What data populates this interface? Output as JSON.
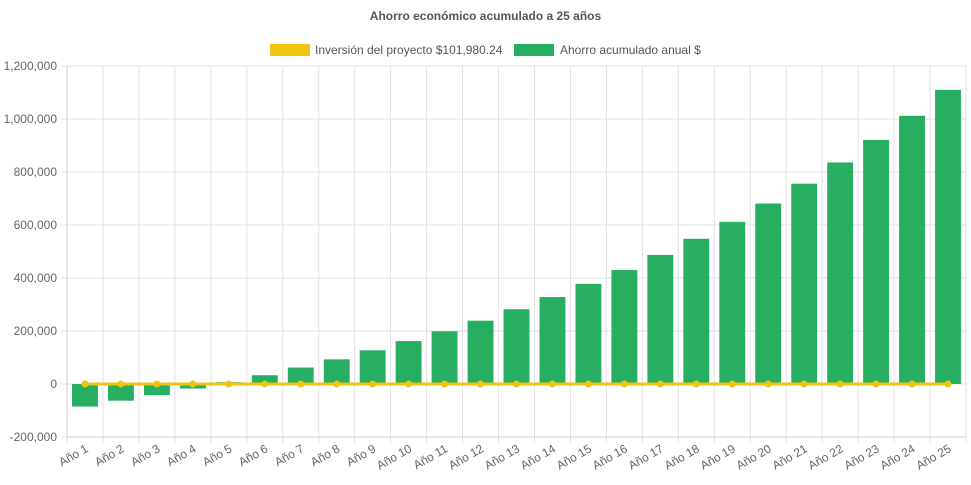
{
  "chart_data": {
    "type": "bar",
    "title": "Ahorro económico acumulado a 25 años",
    "legend_position": "top-center",
    "grid": true,
    "ylim": [
      -200000,
      1200000
    ],
    "ytick_step": 200000,
    "ytick_labels": [
      "-200,000",
      "0",
      "200,000",
      "400,000",
      "600,000",
      "800,000",
      "1,000,000",
      "1,200,000"
    ],
    "categories": [
      "Año 1",
      "Año 2",
      "Año 3",
      "Año 4",
      "Año 5",
      "Año 6",
      "Año 7",
      "Año 8",
      "Año 9",
      "Año 10",
      "Año 11",
      "Año 12",
      "Año 13",
      "Año 14",
      "Año 15",
      "Año 16",
      "Año 17",
      "Año 18",
      "Año 19",
      "Año 20",
      "Año 21",
      "Año 22",
      "Año 23",
      "Año 24",
      "Año 25"
    ],
    "series": [
      {
        "name": "Inversión del proyecto $101,980.24",
        "type": "line",
        "color": "#f1c40f",
        "values": [
          0,
          0,
          0,
          0,
          0,
          0,
          0,
          0,
          0,
          0,
          0,
          0,
          0,
          0,
          0,
          0,
          0,
          0,
          0,
          0,
          0,
          0,
          0,
          0,
          0
        ]
      },
      {
        "name": "Ahorro acumulado anual $",
        "type": "bar",
        "color": "#27ae60",
        "values": [
          -85000,
          -63000,
          -42000,
          -17000,
          7000,
          33000,
          62000,
          93000,
          127000,
          162000,
          199000,
          239000,
          282000,
          328000,
          378000,
          430000,
          487000,
          548000,
          612000,
          681000,
          756000,
          836000,
          921000,
          1012000,
          1110000
        ]
      }
    ]
  }
}
